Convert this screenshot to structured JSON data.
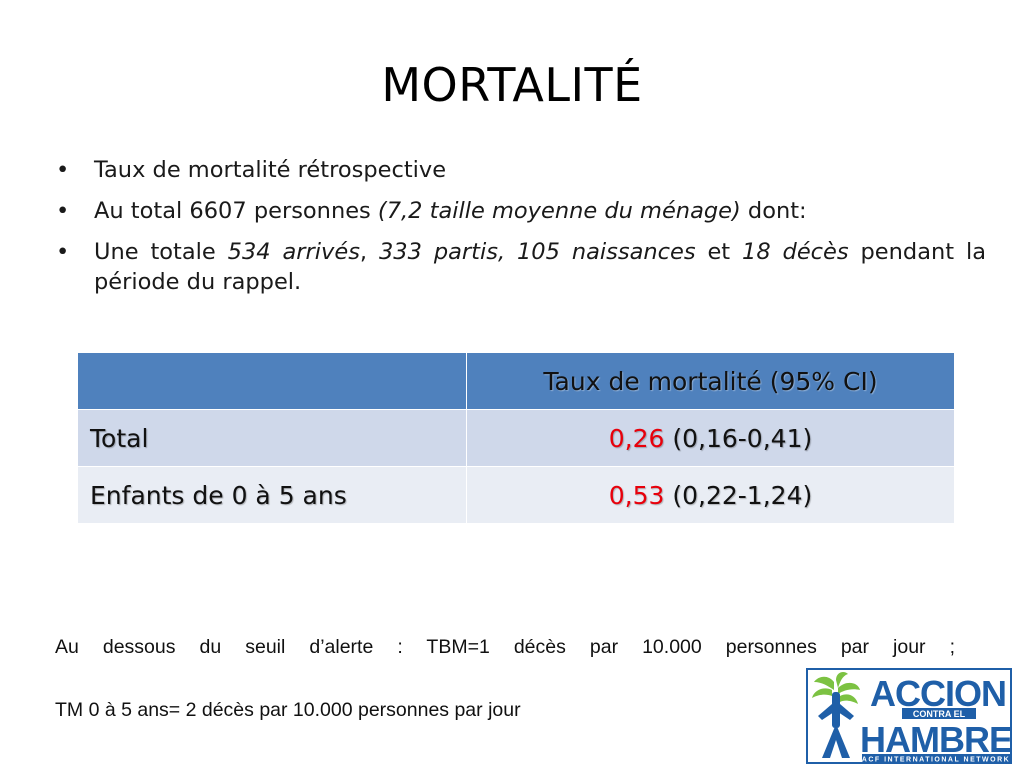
{
  "title": "MORTALITÉ",
  "bullets": {
    "b1": "Taux de mortalité rétrospective",
    "b2_text": "Au total 6607 personnes ",
    "b2_italic": "(7,2 taille moyenne du ménage)",
    "b2_tail": " dont:",
    "b3_lead": "Une totale ",
    "b3_i1": "534 arrivés",
    "b3_sep1": ", ",
    "b3_i2": "333 partis, 105 naissances",
    "b3_sep2": " et ",
    "b3_i3": "18 décès",
    "b3_tail": " pendant la période du rappel."
  },
  "table": {
    "header": "Taux de mortalité (95% CI)",
    "rows": [
      {
        "label": "Total",
        "value": "0,26",
        "ci": " (0,16-0,41)"
      },
      {
        "label": "Enfants de 0 à 5 ans",
        "value": "0,53",
        "ci": " (0,22-1,24)"
      }
    ]
  },
  "notes": {
    "line1": "Au dessous du seuil d’alerte : TBM=1 décès par 10.000 personnes par jour ;",
    "line2": "TM 0 à 5 ans= 2 décès par 10.000 personnes par jour"
  },
  "logo": {
    "word1": "ACCION",
    "tag": "CONTRA EL",
    "word2": "HAMBRE",
    "network": "ACF INTERNATIONAL NETWORK",
    "icon": "plant-figure-icon",
    "color_blue": "#1f5fa8",
    "color_green": "#7cc242"
  }
}
